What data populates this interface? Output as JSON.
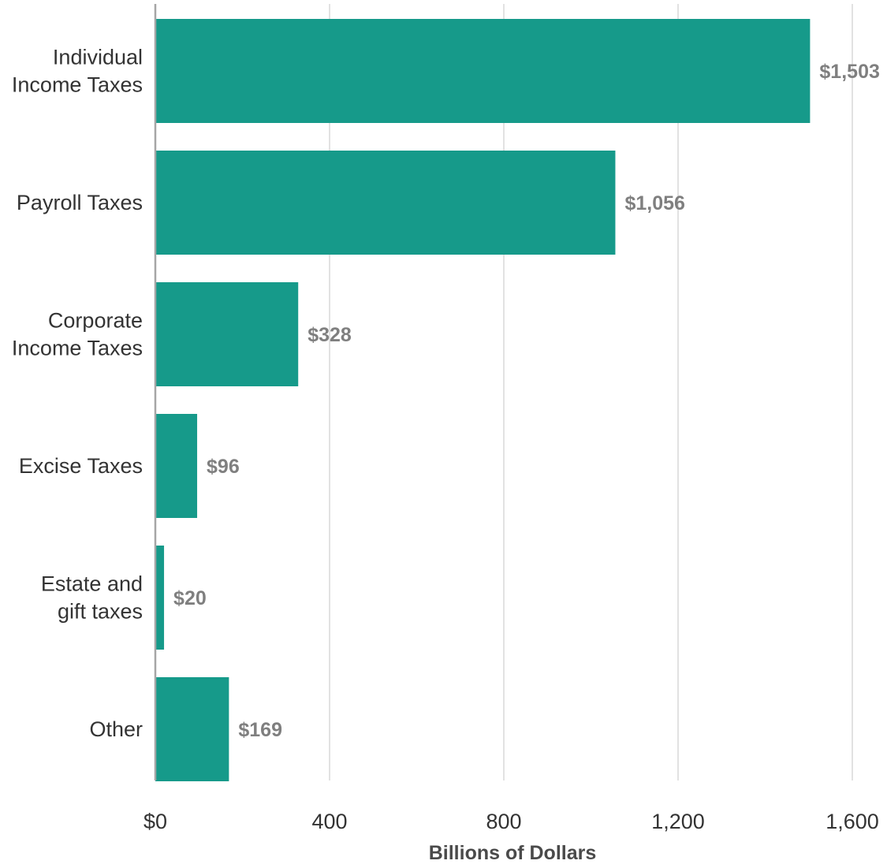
{
  "chart_data": {
    "type": "bar",
    "orientation": "horizontal",
    "categories": [
      [
        "Individual",
        "Income Taxes"
      ],
      [
        "Payroll Taxes"
      ],
      [
        "Corporate",
        "Income Taxes"
      ],
      [
        "Excise Taxes"
      ],
      [
        "Estate and",
        "gift taxes"
      ],
      [
        "Other"
      ]
    ],
    "values": [
      1503,
      1056,
      328,
      96,
      20,
      169
    ],
    "value_labels": [
      "$1,503",
      "$1,056",
      "$328",
      "$96",
      "$20",
      "$169"
    ],
    "x_ticks": [
      0,
      400,
      800,
      1200,
      1600
    ],
    "x_tick_labels": [
      "$0",
      "400",
      "800",
      "1,200",
      "1,600"
    ],
    "xlabel": "Billions of Dollars",
    "xlim": [
      0,
      1600
    ],
    "grid": "vertical",
    "colors": {
      "bar": "#169a8a",
      "grid": "#cfcfcf",
      "axis": "#a6a6a6",
      "value_label": "#7f7f7f",
      "text": "#333333"
    }
  }
}
